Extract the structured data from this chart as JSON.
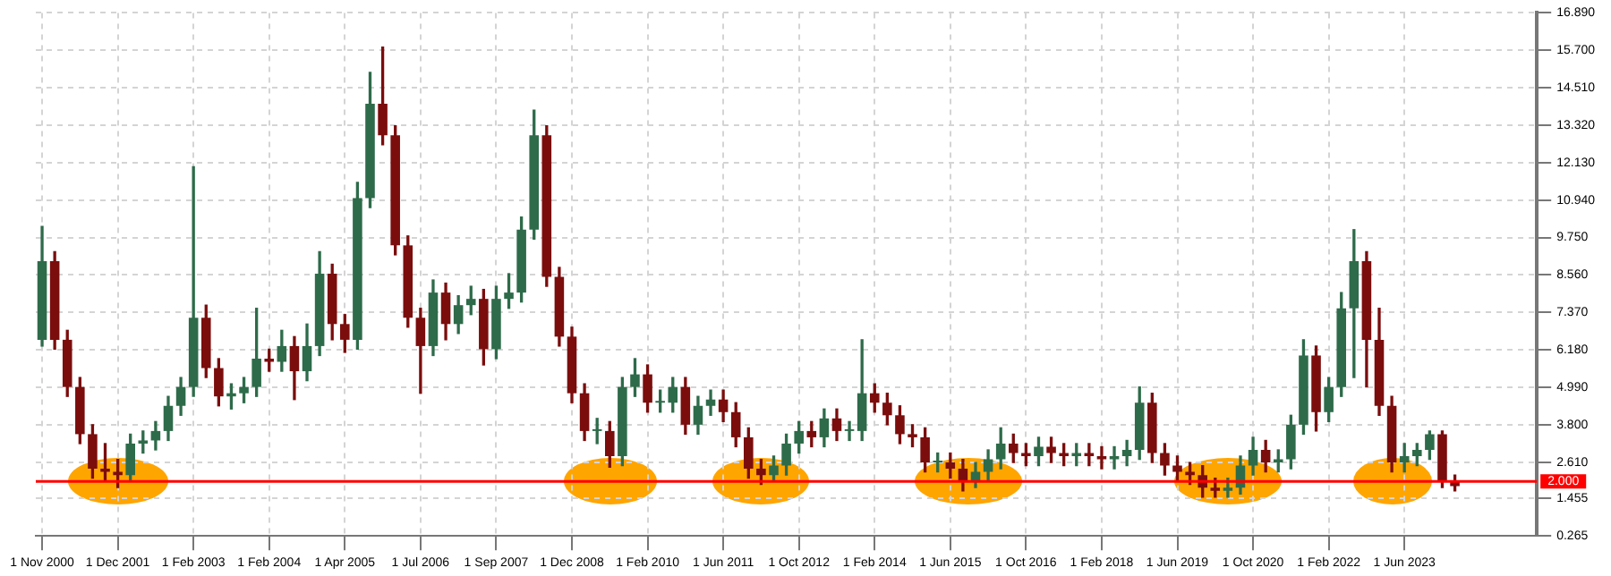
{
  "chart_data": {
    "type": "candlestick",
    "categories": [
      "1 Nov 2000",
      null,
      null,
      null,
      null,
      null,
      "1 Dec 2001",
      null,
      null,
      null,
      null,
      null,
      "1 Feb 2003",
      null,
      null,
      null,
      null,
      null,
      "1 Feb 2004",
      null,
      null,
      null,
      null,
      null,
      "1 Apr 2005",
      null,
      null,
      null,
      null,
      null,
      "1 Jul 2006",
      null,
      null,
      null,
      null,
      null,
      "1 Sep 2007",
      null,
      null,
      null,
      null,
      null,
      "1 Dec 2008",
      null,
      null,
      null,
      null,
      null,
      "1 Feb 2010",
      null,
      null,
      null,
      null,
      null,
      "1 Jun 2011",
      null,
      null,
      null,
      null,
      null,
      "1 Oct 2012",
      null,
      null,
      null,
      null,
      null,
      "1 Feb 2014",
      null,
      null,
      null,
      null,
      null,
      "1 Jun 2015",
      null,
      null,
      null,
      null,
      null,
      "1 Oct 2016",
      null,
      null,
      null,
      null,
      null,
      "1 Feb 2018",
      null,
      null,
      null,
      null,
      null,
      "1 Jun 2019",
      null,
      null,
      null,
      null,
      null,
      "1 Oct 2020",
      null,
      null,
      null,
      null,
      null,
      "1 Feb 2022",
      null,
      null,
      null,
      null,
      null,
      "1 Jun 2023",
      null,
      null,
      null,
      null,
      null,
      null,
      null,
      null,
      null,
      null
    ],
    "ohlc": [
      [
        6.5,
        10.1,
        6.3,
        9.0
      ],
      [
        9.0,
        9.3,
        6.2,
        6.5
      ],
      [
        6.5,
        6.8,
        4.7,
        5.0
      ],
      [
        5.0,
        5.3,
        3.2,
        3.5
      ],
      [
        3.5,
        3.8,
        2.1,
        2.4
      ],
      [
        2.4,
        3.2,
        2.0,
        2.3
      ],
      [
        2.3,
        2.7,
        1.8,
        2.2
      ],
      [
        2.2,
        3.5,
        2.0,
        3.2
      ],
      [
        3.2,
        3.6,
        2.9,
        3.3
      ],
      [
        3.3,
        3.9,
        3.0,
        3.6
      ],
      [
        3.6,
        4.7,
        3.3,
        4.4
      ],
      [
        4.4,
        5.3,
        4.1,
        5.0
      ],
      [
        5.0,
        12.0,
        4.7,
        7.2
      ],
      [
        7.2,
        7.6,
        5.3,
        5.6
      ],
      [
        5.6,
        5.9,
        4.4,
        4.7
      ],
      [
        4.7,
        5.1,
        4.3,
        4.8
      ],
      [
        4.8,
        5.3,
        4.5,
        5.0
      ],
      [
        5.0,
        7.5,
        4.7,
        5.9
      ],
      [
        5.9,
        6.2,
        5.5,
        5.8
      ],
      [
        5.8,
        6.8,
        5.5,
        6.3
      ],
      [
        6.3,
        6.6,
        4.6,
        5.5
      ],
      [
        5.5,
        7.0,
        5.2,
        6.3
      ],
      [
        6.3,
        9.3,
        6.0,
        8.6
      ],
      [
        8.6,
        8.9,
        6.5,
        7.0
      ],
      [
        7.0,
        7.3,
        6.1,
        6.5
      ],
      [
        6.5,
        11.5,
        6.2,
        11.0
      ],
      [
        11.0,
        15.0,
        10.7,
        14.0
      ],
      [
        14.0,
        15.8,
        12.7,
        13.0
      ],
      [
        13.0,
        13.3,
        9.2,
        9.5
      ],
      [
        9.5,
        9.8,
        6.9,
        7.2
      ],
      [
        7.2,
        7.5,
        4.8,
        6.3
      ],
      [
        6.3,
        8.4,
        6.0,
        8.0
      ],
      [
        8.0,
        8.3,
        6.5,
        7.0
      ],
      [
        7.0,
        7.9,
        6.7,
        7.6
      ],
      [
        7.6,
        8.2,
        7.3,
        7.8
      ],
      [
        7.8,
        8.1,
        5.7,
        6.2
      ],
      [
        6.2,
        8.2,
        5.9,
        7.8
      ],
      [
        7.8,
        8.6,
        7.5,
        8.0
      ],
      [
        8.0,
        10.4,
        7.7,
        10.0
      ],
      [
        10.0,
        13.8,
        9.7,
        13.0
      ],
      [
        13.0,
        13.3,
        8.2,
        8.5
      ],
      [
        8.5,
        8.8,
        6.3,
        6.6
      ],
      [
        6.6,
        6.9,
        4.5,
        4.8
      ],
      [
        4.8,
        5.1,
        3.3,
        3.6
      ],
      [
        3.6,
        4.0,
        3.2,
        3.6
      ],
      [
        3.6,
        3.9,
        2.45,
        2.8
      ],
      [
        2.8,
        5.3,
        2.5,
        5.0
      ],
      [
        5.0,
        5.9,
        4.7,
        5.4
      ],
      [
        5.4,
        5.7,
        4.2,
        4.5
      ],
      [
        4.5,
        4.9,
        4.2,
        4.5
      ],
      [
        4.5,
        5.3,
        4.2,
        5.0
      ],
      [
        5.0,
        5.3,
        3.5,
        3.8
      ],
      [
        3.8,
        4.7,
        3.5,
        4.4
      ],
      [
        4.4,
        4.9,
        4.1,
        4.6
      ],
      [
        4.6,
        4.9,
        3.9,
        4.2
      ],
      [
        4.2,
        4.5,
        3.1,
        3.4
      ],
      [
        3.4,
        3.7,
        2.1,
        2.4
      ],
      [
        2.4,
        2.7,
        1.9,
        2.2
      ],
      [
        2.2,
        2.8,
        2.0,
        2.5
      ],
      [
        2.5,
        3.5,
        2.2,
        3.2
      ],
      [
        3.2,
        3.9,
        2.9,
        3.6
      ],
      [
        3.6,
        3.9,
        3.1,
        3.4
      ],
      [
        3.4,
        4.3,
        3.1,
        4.0
      ],
      [
        4.0,
        4.3,
        3.3,
        3.6
      ],
      [
        3.6,
        3.9,
        3.3,
        3.6
      ],
      [
        3.6,
        6.5,
        3.3,
        4.8
      ],
      [
        4.8,
        5.1,
        4.2,
        4.5
      ],
      [
        4.5,
        4.8,
        3.8,
        4.1
      ],
      [
        4.1,
        4.4,
        3.2,
        3.5
      ],
      [
        3.5,
        3.8,
        3.1,
        3.4
      ],
      [
        3.4,
        3.7,
        2.3,
        2.6
      ],
      [
        2.6,
        2.9,
        2.3,
        2.6
      ],
      [
        2.6,
        2.9,
        2.1,
        2.4
      ],
      [
        2.4,
        2.7,
        1.7,
        2.0
      ],
      [
        2.0,
        2.6,
        1.8,
        2.3
      ],
      [
        2.3,
        3.0,
        2.0,
        2.7
      ],
      [
        2.7,
        3.7,
        2.4,
        3.2
      ],
      [
        3.2,
        3.5,
        2.6,
        2.9
      ],
      [
        2.9,
        3.2,
        2.5,
        2.8
      ],
      [
        2.8,
        3.4,
        2.5,
        3.1
      ],
      [
        3.1,
        3.4,
        2.6,
        2.9
      ],
      [
        2.9,
        3.2,
        2.5,
        2.8
      ],
      [
        2.8,
        3.2,
        2.5,
        2.9
      ],
      [
        2.9,
        3.2,
        2.5,
        2.8
      ],
      [
        2.8,
        3.1,
        2.4,
        2.7
      ],
      [
        2.7,
        3.1,
        2.4,
        2.8
      ],
      [
        2.8,
        3.3,
        2.5,
        3.0
      ],
      [
        3.0,
        5.0,
        2.7,
        4.5
      ],
      [
        4.5,
        4.8,
        2.6,
        2.9
      ],
      [
        2.9,
        3.2,
        2.2,
        2.5
      ],
      [
        2.5,
        2.8,
        2.0,
        2.3
      ],
      [
        2.3,
        2.6,
        1.9,
        2.2
      ],
      [
        2.2,
        2.5,
        1.5,
        1.8
      ],
      [
        1.8,
        2.1,
        1.5,
        1.7
      ],
      [
        1.7,
        2.1,
        1.5,
        1.8
      ],
      [
        1.8,
        2.8,
        1.6,
        2.5
      ],
      [
        2.5,
        3.4,
        2.2,
        3.0
      ],
      [
        3.0,
        3.3,
        2.3,
        2.6
      ],
      [
        2.6,
        3.0,
        2.3,
        2.7
      ],
      [
        2.7,
        4.1,
        2.4,
        3.8
      ],
      [
        3.8,
        6.5,
        3.5,
        6.0
      ],
      [
        6.0,
        6.3,
        3.6,
        4.2
      ],
      [
        4.2,
        5.3,
        3.9,
        5.0
      ],
      [
        5.0,
        8.0,
        4.7,
        7.5
      ],
      [
        7.5,
        10.0,
        5.3,
        9.0
      ],
      [
        9.0,
        9.3,
        5.0,
        6.5
      ],
      [
        6.5,
        7.5,
        4.1,
        4.4
      ],
      [
        4.4,
        4.7,
        2.3,
        2.6
      ],
      [
        2.6,
        3.2,
        2.3,
        2.8
      ],
      [
        2.8,
        3.2,
        2.5,
        3.0
      ],
      [
        3.0,
        3.6,
        2.7,
        3.5
      ],
      [
        3.5,
        3.6,
        1.8,
        2.0
      ],
      [
        2.0,
        2.2,
        1.7,
        1.85
      ],
      null,
      null,
      null,
      null,
      null,
      null
    ],
    "colors": [
      "#2e6b4a",
      "#7b0d0d",
      "#7b0d0d",
      "#7b0d0d",
      "#7b0d0d",
      "#7b0d0d",
      "#7b0d0d",
      "#2e6b4a",
      "#2e6b4a",
      "#2e6b4a",
      "#2e6b4a",
      "#2e6b4a",
      "#2e6b4a",
      "#7b0d0d",
      "#7b0d0d",
      "#2e6b4a",
      "#2e6b4a",
      "#2e6b4a",
      "#7b0d0d",
      "#2e6b4a",
      "#7b0d0d",
      "#2e6b4a",
      "#2e6b4a",
      "#7b0d0d",
      "#7b0d0d",
      "#2e6b4a",
      "#2e6b4a",
      "#7b0d0d",
      "#7b0d0d",
      "#7b0d0d",
      "#7b0d0d",
      "#2e6b4a",
      "#7b0d0d",
      "#2e6b4a",
      "#2e6b4a",
      "#7b0d0d",
      "#2e6b4a",
      "#2e6b4a",
      "#2e6b4a",
      "#2e6b4a",
      "#7b0d0d",
      "#7b0d0d",
      "#7b0d0d",
      "#7b0d0d",
      "#2e6b4a",
      "#7b0d0d",
      "#2e6b4a",
      "#2e6b4a",
      "#7b0d0d",
      "#2e6b4a",
      "#2e6b4a",
      "#7b0d0d",
      "#2e6b4a",
      "#2e6b4a",
      "#7b0d0d",
      "#7b0d0d",
      "#7b0d0d",
      "#7b0d0d",
      "#2e6b4a",
      "#2e6b4a",
      "#2e6b4a",
      "#7b0d0d",
      "#2e6b4a",
      "#7b0d0d",
      "#2e6b4a",
      "#2e6b4a",
      "#7b0d0d",
      "#7b0d0d",
      "#7b0d0d",
      "#7b0d0d",
      "#7b0d0d",
      "#2e6b4a",
      "#7b0d0d",
      "#7b0d0d",
      "#2e6b4a",
      "#2e6b4a",
      "#2e6b4a",
      "#7b0d0d",
      "#7b0d0d",
      "#2e6b4a",
      "#7b0d0d",
      "#7b0d0d",
      "#2e6b4a",
      "#7b0d0d",
      "#7b0d0d",
      "#2e6b4a",
      "#2e6b4a",
      "#2e6b4a",
      "#7b0d0d",
      "#7b0d0d",
      "#7b0d0d",
      "#7b0d0d",
      "#7b0d0d",
      "#7b0d0d",
      "#2e6b4a",
      "#2e6b4a",
      "#2e6b4a",
      "#7b0d0d",
      "#2e6b4a",
      "#2e6b4a",
      "#2e6b4a",
      "#7b0d0d",
      "#2e6b4a",
      "#2e6b4a",
      "#2e6b4a",
      "#7b0d0d",
      "#7b0d0d",
      "#7b0d0d",
      "#2e6b4a",
      "#2e6b4a",
      "#2e6b4a",
      "#7b0d0d",
      "#7b0d0d",
      null,
      null,
      null,
      null,
      null,
      null
    ],
    "ylim": [
      0.265,
      16.89
    ],
    "yticks": [
      0.265,
      1.455,
      {
        "value": 2.61,
        "label": "2.610"
      },
      {
        "value": 3.8,
        "label": "3.800"
      },
      {
        "value": 4.99,
        "label": "4.990"
      },
      {
        "value": 6.18,
        "label": "6.180"
      },
      {
        "value": 7.37,
        "label": "7.370"
      },
      {
        "value": 8.56,
        "label": "8.560"
      },
      {
        "value": 9.75,
        "label": "9.750"
      },
      {
        "value": 10.94,
        "label": "10.940"
      },
      {
        "value": 12.13,
        "label": "12.130"
      },
      {
        "value": 13.32,
        "label": "13.320"
      },
      {
        "value": 14.51,
        "label": "14.510"
      },
      {
        "value": 15.7,
        "label": "15.700"
      },
      {
        "value": 16.89,
        "label": "16.890"
      }
    ],
    "ref_lines": [
      {
        "axis": "y",
        "value": 2,
        "label": "2.000",
        "color": "#ff0000"
      }
    ],
    "grid": true,
    "legend": false
  }
}
